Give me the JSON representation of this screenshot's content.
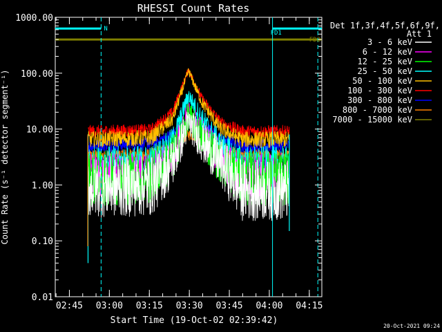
{
  "chart_data": {
    "type": "line",
    "title": "RHESSI Count Rates",
    "xlabel": "Start Time (19-Oct-02 02:39:42)",
    "ylabel": "Count Rate (s⁻¹ detector segment⁻¹)",
    "y_scale": "log",
    "ylim": [
      0.01,
      1000
    ],
    "xlim_minutes_since_start": [
      0,
      100
    ],
    "x_ticks": [
      {
        "label": "02:45",
        "t": 5.3
      },
      {
        "label": "03:00",
        "t": 20.3
      },
      {
        "label": "03:15",
        "t": 35.3
      },
      {
        "label": "03:30",
        "t": 50.3
      },
      {
        "label": "03:45",
        "t": 65.3
      },
      {
        "label": "04:00",
        "t": 80.3
      },
      {
        "label": "04:15",
        "t": 95.3
      }
    ],
    "y_ticks": [
      {
        "label": "0.01",
        "v": 0.01
      },
      {
        "label": "0.10",
        "v": 0.1
      },
      {
        "label": "1.00",
        "v": 1
      },
      {
        "label": "10.00",
        "v": 10
      },
      {
        "label": "100.00",
        "v": 100
      },
      {
        "label": "1000.00",
        "v": 1000
      }
    ],
    "legend": {
      "placement": "right",
      "header": [
        "Det 1f,3f,4f,5f,6f,9f,",
        "Att 1"
      ]
    },
    "series": [
      {
        "name": "3 - 6 keV",
        "color": "#ffffff",
        "base": 0.9,
        "peak": 13,
        "noise": 0.55,
        "x": [
          12.3,
          36,
          44,
          50,
          55,
          62,
          70,
          87.8
        ],
        "y": [
          0.9,
          0.95,
          2.5,
          13,
          6,
          2.5,
          0.8,
          0.8
        ]
      },
      {
        "name": "6 - 12 keV",
        "color": "#ff00ff",
        "base": 1.5,
        "peak": 20,
        "noise": 0.4,
        "x": [
          12.3,
          36,
          44,
          50,
          55,
          62,
          70,
          87.8
        ],
        "y": [
          1.5,
          1.5,
          3.5,
          20,
          8,
          3,
          1.5,
          1.5
        ]
      },
      {
        "name": "12 - 25 keV",
        "color": "#00ff00",
        "base": 1.3,
        "peak": 17,
        "noise": 0.5,
        "x": [
          12.3,
          36,
          44,
          50,
          55,
          62,
          70,
          87.8
        ],
        "y": [
          1.3,
          1.4,
          3,
          17,
          7,
          2.8,
          1.3,
          1.3
        ]
      },
      {
        "name": "25 - 50 keV",
        "color": "#00ffff",
        "base": 2.5,
        "peak": 40,
        "noise": 0.3,
        "x": [
          12.3,
          36,
          44,
          50,
          55,
          62,
          70,
          87.8
        ],
        "y": [
          2.5,
          2.6,
          6,
          40,
          15,
          5,
          2.5,
          2.5
        ]
      },
      {
        "name": "50 - 100 keV",
        "color": "#ffbf00",
        "base": 6.5,
        "peak": 110,
        "noise": 0.15,
        "x": [
          12.3,
          36,
          44,
          50,
          55,
          62,
          70,
          87.8
        ],
        "y": [
          6.5,
          7,
          15,
          110,
          30,
          10,
          6.5,
          6.5
        ]
      },
      {
        "name": "100 - 300 keV",
        "color": "#ff0000",
        "base": 9,
        "peak": 115,
        "noise": 0.12,
        "x": [
          12.3,
          36,
          44,
          50,
          55,
          62,
          70,
          87.8
        ],
        "y": [
          9,
          9.5,
          20,
          115,
          35,
          13,
          9,
          9
        ]
      },
      {
        "name": "300 - 800 keV",
        "color": "#0000ff",
        "base": 5,
        "peak": 15,
        "noise": 0.12,
        "x": [
          12.3,
          36,
          44,
          50,
          55,
          62,
          70,
          87.8
        ],
        "y": [
          5,
          5.5,
          8,
          15,
          12,
          7,
          5,
          5
        ]
      },
      {
        "name": "800 - 7000 keV",
        "color": "#ff8000",
        "base": 3.3,
        "peak": 8,
        "noise": 0.12,
        "x": [
          12.3,
          36,
          44,
          50,
          55,
          62,
          70,
          87.8
        ],
        "y": [
          3.3,
          3.5,
          5,
          8,
          7,
          4.5,
          3.3,
          3.3
        ]
      },
      {
        "name": "7000 - 15000 keV",
        "color": "#808000",
        "x": [
          0,
          100
        ],
        "y": [
          400,
          400
        ]
      }
    ],
    "annotations": [
      {
        "label": "N",
        "t0": 0,
        "t1": 17.2,
        "v": 630,
        "color": "#00ffff",
        "kind": "bar"
      },
      {
        "label": "FD1",
        "t0": 81.5,
        "t1": 100,
        "v": 630,
        "color": "#00ffff",
        "kind": "bar"
      },
      {
        "label": "FD2",
        "v": 400,
        "color": "#808000",
        "kind": "label"
      }
    ],
    "vlines": [
      {
        "t": 17.2,
        "color": "#00ffff",
        "style": "dashed"
      },
      {
        "t": 81.5,
        "color": "#00ffff",
        "style": "solid"
      },
      {
        "t": 98.5,
        "color": "#00ffff",
        "style": "dashed"
      }
    ],
    "drop_marks": [
      {
        "t": 12.3,
        "v": 0.04,
        "color": "#00ffff"
      },
      {
        "t": 12.2,
        "v": 0.08,
        "color": "#ff8000"
      },
      {
        "t": 87.8,
        "v": 0.15,
        "color": "#00ffff"
      }
    ],
    "timestamp": "20-Oct-2021 09:24"
  }
}
